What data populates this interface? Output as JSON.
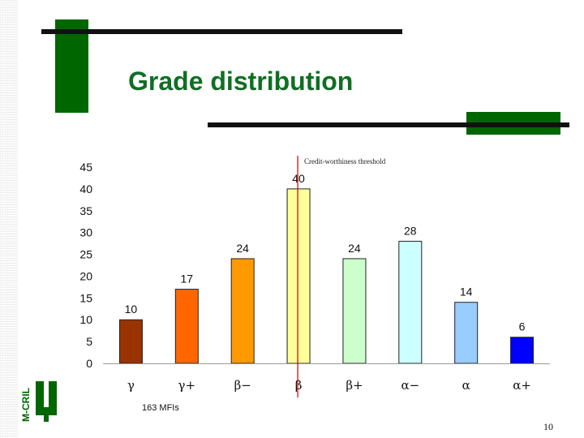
{
  "slide": {
    "title": "Grade distribution",
    "threshold_label": "Credit-worthiness threshold",
    "sample_note": "163 MFIs",
    "page_number": "10",
    "logo_text": "M-CRIL"
  },
  "colors": {
    "title": "#0f6f23",
    "accent_green": "#006600",
    "threshold_line": "#cc0000"
  },
  "chart_data": {
    "type": "bar",
    "categories": [
      "γ",
      "γ+",
      "β−",
      "β",
      "β+",
      "α−",
      "α",
      "α+"
    ],
    "values": [
      10,
      17,
      24,
      40,
      24,
      28,
      14,
      6
    ],
    "bar_colors": [
      "#993300",
      "#ff6600",
      "#ff9900",
      "#ffff99",
      "#ccffcc",
      "#ccffff",
      "#99ccff",
      "#0000ff"
    ],
    "title": "",
    "xlabel": "",
    "ylabel": "",
    "ylim": [
      0,
      45
    ],
    "yticks": [
      0,
      5,
      10,
      15,
      20,
      25,
      30,
      35,
      40,
      45
    ],
    "threshold_category": "β",
    "grid": false,
    "data_labels": true
  }
}
